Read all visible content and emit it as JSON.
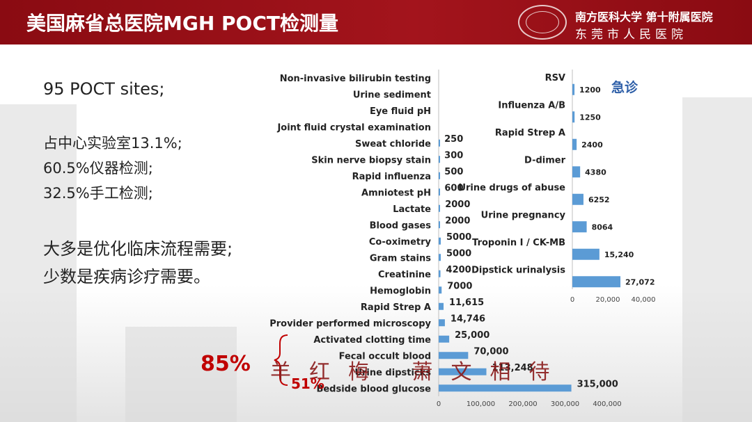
{
  "header": {
    "title": "美国麻省总医院MGH POCT检测量",
    "hospital_line1": "南方医科大学 第十附属医院",
    "hospital_line2": "东莞市人民医院"
  },
  "left_text": {
    "sites": "95 POCT sites;",
    "p1": "占中心实验室13.1%;",
    "p2": "60.5%仪器检测;",
    "p3": "32.5%手工检测;",
    "a1": "大多是优化临床流程需要;",
    "a2": "少数是疾病诊疗需要。"
  },
  "annotations": {
    "pct85": "85%",
    "pct51": "51%",
    "emergency": "急诊"
  },
  "signature": "羊红梅 萧文相待",
  "colors": {
    "bar": "#5b9bd5",
    "header": "#9a1118",
    "accent_red": "#c00000",
    "emergency_blue": "#2e5fa8"
  },
  "chart_data": [
    {
      "type": "bar",
      "orientation": "horizontal",
      "categories": [
        "Non-invasive bilirubin testing",
        "Urine sediment",
        "Eye fluid pH",
        "Joint fluid crystal examination",
        "Sweat chloride",
        "Skin nerve biopsy stain",
        "Rapid influenza",
        "Amniotest pH",
        "Lactate",
        "Blood gases",
        "Co-oximetry",
        "Gram stains",
        "Creatinine",
        "Hemoglobin",
        "Rapid Strep A",
        "Provider performed microscopy",
        "Activated clotting time",
        "Fecal occult blood",
        "Urine dipsticks",
        "Bedside blood glucose"
      ],
      "values": [
        0,
        0,
        0,
        0,
        250,
        300,
        500,
        600,
        2000,
        2000,
        5000,
        5000,
        4200,
        7000,
        11615,
        14746,
        25000,
        70000,
        113248,
        315000
      ],
      "labels": [
        "",
        "",
        "",
        "",
        "250",
        "300",
        "500",
        "600",
        "2000",
        "2000",
        "5000",
        "5000",
        "4200",
        "7000",
        "11,615",
        "14,746",
        "25,000",
        "70,000",
        "113,248",
        "315,000"
      ],
      "xlim": [
        0,
        400000
      ],
      "xticks": [
        "0",
        "100,000",
        "200,000",
        "300,000",
        "400,000"
      ]
    },
    {
      "type": "bar",
      "orientation": "horizontal",
      "categories": [
        "RSV",
        "Influenza A/B",
        "Rapid Strep A",
        "D-dimer",
        "Urine drugs of abuse",
        "Urine pregnancy",
        "Troponin I / CK-MB",
        "Dipstick urinalysis"
      ],
      "values": [
        1200,
        1250,
        2400,
        4380,
        6252,
        8064,
        15240,
        27072
      ],
      "labels": [
        "1200",
        "1250",
        "2400",
        "4380",
        "6252",
        "8064",
        "15,240",
        "27,072"
      ],
      "xlim": [
        0,
        40000
      ],
      "xticks": [
        "0",
        "20,000",
        "40,000"
      ]
    }
  ]
}
